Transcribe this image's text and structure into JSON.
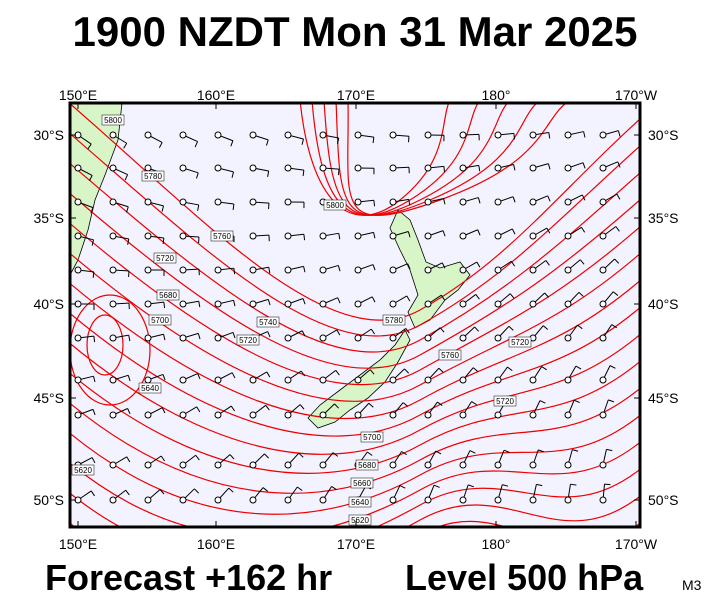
{
  "header": {
    "title": "1900 NZDT Mon 31 Mar 2025"
  },
  "axes": {
    "top": [
      "150°E",
      "160°E",
      "170°E",
      "180°",
      "170°W"
    ],
    "bottom": [
      "150°E",
      "160°E",
      "170°E",
      "180°",
      "170°W"
    ],
    "left": [
      "30°S",
      "35°S",
      "40°S",
      "45°S",
      "50°S"
    ],
    "right": [
      "30°S",
      "35°S",
      "40°S",
      "45°S",
      "50°S"
    ]
  },
  "contour_labels": [
    "5800",
    "5780",
    "5760",
    "5720",
    "5680",
    "5700",
    "5740",
    "5720",
    "5640",
    "5800",
    "5780",
    "5760",
    "5720",
    "5720",
    "5700",
    "5680",
    "5660",
    "5640",
    "5620",
    "5620"
  ],
  "footer": {
    "forecast": "Forecast +162 hr",
    "level": "Level 500 hPa",
    "code": "M3"
  }
}
